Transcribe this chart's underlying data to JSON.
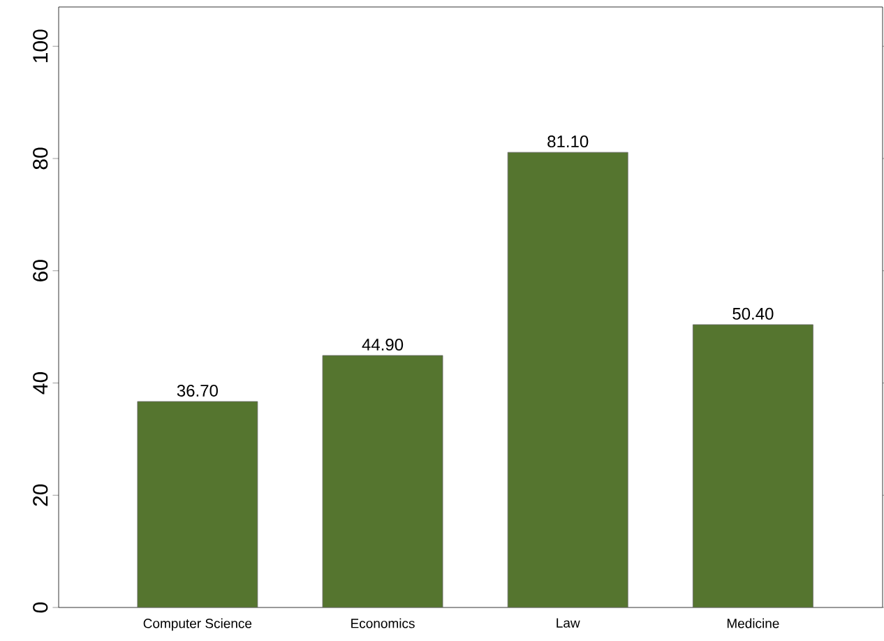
{
  "chart_data": {
    "type": "bar",
    "categories": [
      "Computer Science",
      "Economics",
      "Law",
      "Medicine"
    ],
    "values": [
      36.7,
      44.9,
      81.1,
      50.4
    ],
    "value_labels": [
      "36.70",
      "44.90",
      "81.10",
      "50.40"
    ],
    "color": "#55752f",
    "ylim": [
      0,
      107
    ],
    "yticks": [
      0,
      20,
      40,
      60,
      80,
      100
    ],
    "grid": false
  }
}
